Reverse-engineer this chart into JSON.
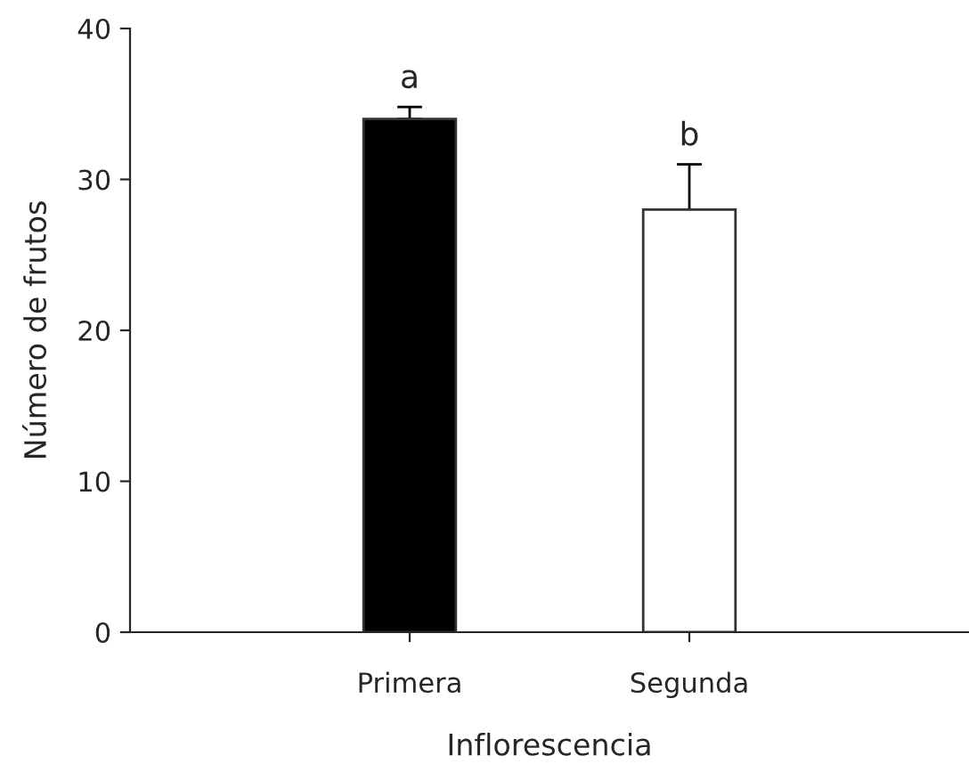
{
  "chart_data": {
    "type": "bar",
    "xlabel": "Inflorescencia",
    "ylabel": "Número de frutos",
    "categories": [
      "Primera",
      "Segunda"
    ],
    "values": [
      34,
      28
    ],
    "colors": [
      "#000000",
      "#ffffff"
    ],
    "errors": [
      [
        34,
        34.8
      ],
      [
        28,
        31
      ]
    ],
    "ylim": [
      0,
      40
    ],
    "yticks": [
      0,
      10,
      20,
      30,
      40
    ],
    "grid": false,
    "legend": false,
    "annotations": [
      {
        "text": "a",
        "x": "Primera",
        "y": 34.8
      },
      {
        "text": "b",
        "x": "Segunda",
        "y": 31
      }
    ]
  }
}
